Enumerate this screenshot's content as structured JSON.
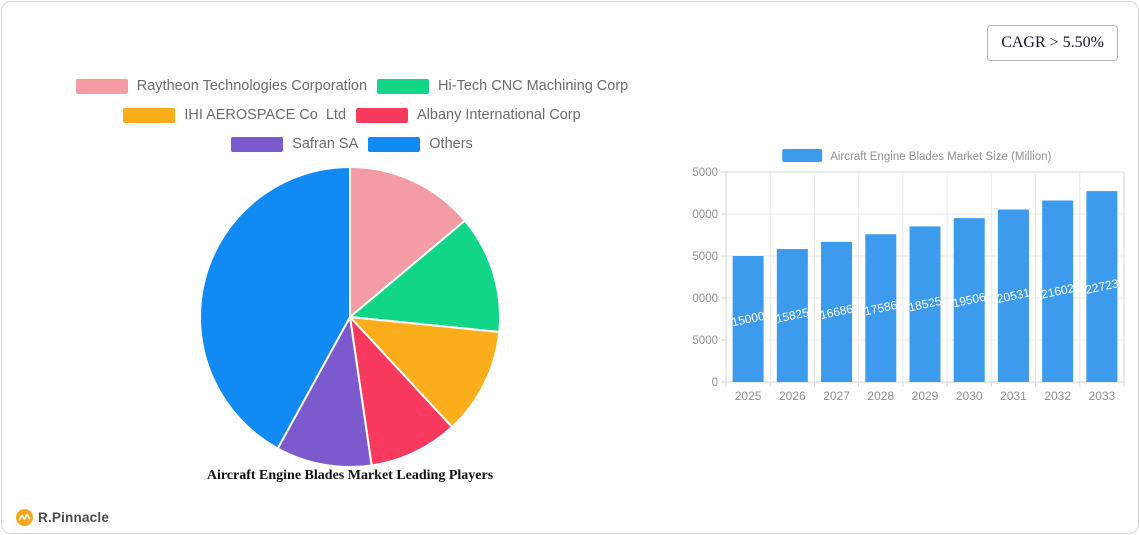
{
  "cagr_badge": {
    "label": "CAGR > 5.50%"
  },
  "logo": {
    "text": "R.Pinnacle",
    "icon": "pulse-icon",
    "icon_color": "#F7A823"
  },
  "chart_data": [
    {
      "type": "pie",
      "title": "Aircraft Engine Blades Market Leading Players",
      "legend_position": "top-center",
      "start_angle": "12-oclock, clockwise",
      "labels": [
        "Raytheon Technologies Corporation",
        "Hi-Tech CNC Machining Corp",
        "IHI AEROSPACE Co  Ltd",
        "Albany International Corp",
        "Safran SA",
        "Others"
      ],
      "values_pct": [
        13.9,
        12.7,
        11.5,
        9.6,
        10.3,
        42.0
      ],
      "colors": [
        "#f49ba3",
        "#12d687",
        "#fcad1b",
        "#f9395e",
        "#7b5acd",
        "#128af3"
      ],
      "slice_gap_color": "#ffffff"
    },
    {
      "type": "bar",
      "series": [
        {
          "name": "Aircraft Engine Blades Market Size (Million)",
          "values": [
            15000,
            15825,
            16686,
            17586,
            18525,
            19506,
            20531,
            21602,
            22723
          ]
        }
      ],
      "categories": [
        "2025",
        "2026",
        "2027",
        "2028",
        "2029",
        "2030",
        "2031",
        "2032",
        "2033"
      ],
      "ylim": [
        0,
        25000
      ],
      "ytick_step": 5000,
      "grid": true,
      "legend_position": "top",
      "bar_color": "#3d9bed",
      "value_label_color": "#ffffff",
      "axis_label_color": "#8e8e8e",
      "grid_color": "#e8e8e8",
      "axis_line_color": "#d4d4d4"
    }
  ]
}
